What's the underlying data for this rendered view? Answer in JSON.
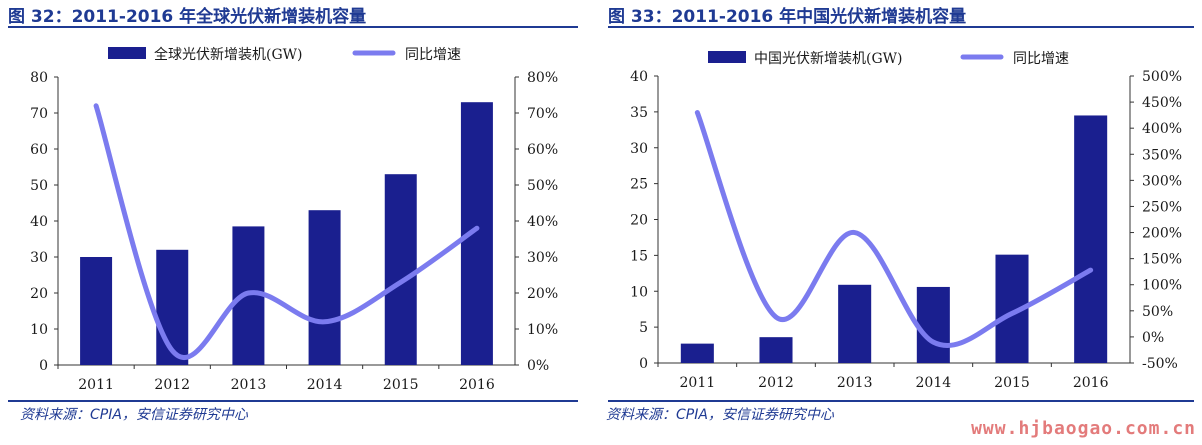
{
  "panels": [
    {
      "title": "图 32：2011-2016 年全球光伏新增装机容量",
      "source": "资料来源：CPIA，安信证券研究中心"
    },
    {
      "title": "图 33：2011-2016 年中国光伏新增装机容量",
      "source": "资料来源：CPIA，安信证券研究中心"
    }
  ],
  "colors": {
    "bar": "#1a1f8f",
    "line": "#7b7bef",
    "title": "#1f3a93"
  },
  "watermark": "www.hjbaogao.com.cn",
  "chart_data": [
    {
      "type": "bar",
      "categories": [
        "2011",
        "2012",
        "2013",
        "2014",
        "2015",
        "2016"
      ],
      "series": [
        {
          "name": "全球光伏新增装机(GW)",
          "type": "bar",
          "axis": "left",
          "values": [
            30,
            32,
            38.5,
            43,
            53,
            73
          ]
        },
        {
          "name": "同比增速",
          "type": "line",
          "axis": "right",
          "values": [
            72,
            4,
            20,
            12,
            23,
            38
          ]
        }
      ],
      "ylim": [
        0,
        80
      ],
      "yticks": [
        "0",
        "10",
        "20",
        "30",
        "40",
        "50",
        "60",
        "70",
        "80"
      ],
      "y2lim": [
        0,
        80
      ],
      "y2ticks": [
        "0%",
        "10%",
        "20%",
        "30%",
        "40%",
        "50%",
        "60%",
        "70%",
        "80%"
      ],
      "legend": "top"
    },
    {
      "type": "bar",
      "categories": [
        "2011",
        "2012",
        "2013",
        "2014",
        "2015",
        "2016"
      ],
      "series": [
        {
          "name": "中国光伏新增装机(GW)",
          "type": "bar",
          "axis": "left",
          "values": [
            2.7,
            3.6,
            10.9,
            10.6,
            15.1,
            34.5
          ]
        },
        {
          "name": "同比增速",
          "type": "line",
          "axis": "right",
          "values": [
            430,
            38,
            200,
            -10,
            45,
            128
          ]
        }
      ],
      "ylim": [
        0,
        40
      ],
      "yticks": [
        "0",
        "5",
        "10",
        "15",
        "20",
        "25",
        "30",
        "35",
        "40"
      ],
      "y2lim": [
        -50,
        500
      ],
      "y2ticks": [
        "-50%",
        "0%",
        "50%",
        "100%",
        "150%",
        "200%",
        "250%",
        "300%",
        "350%",
        "400%",
        "450%",
        "500%"
      ],
      "legend": "top"
    }
  ]
}
